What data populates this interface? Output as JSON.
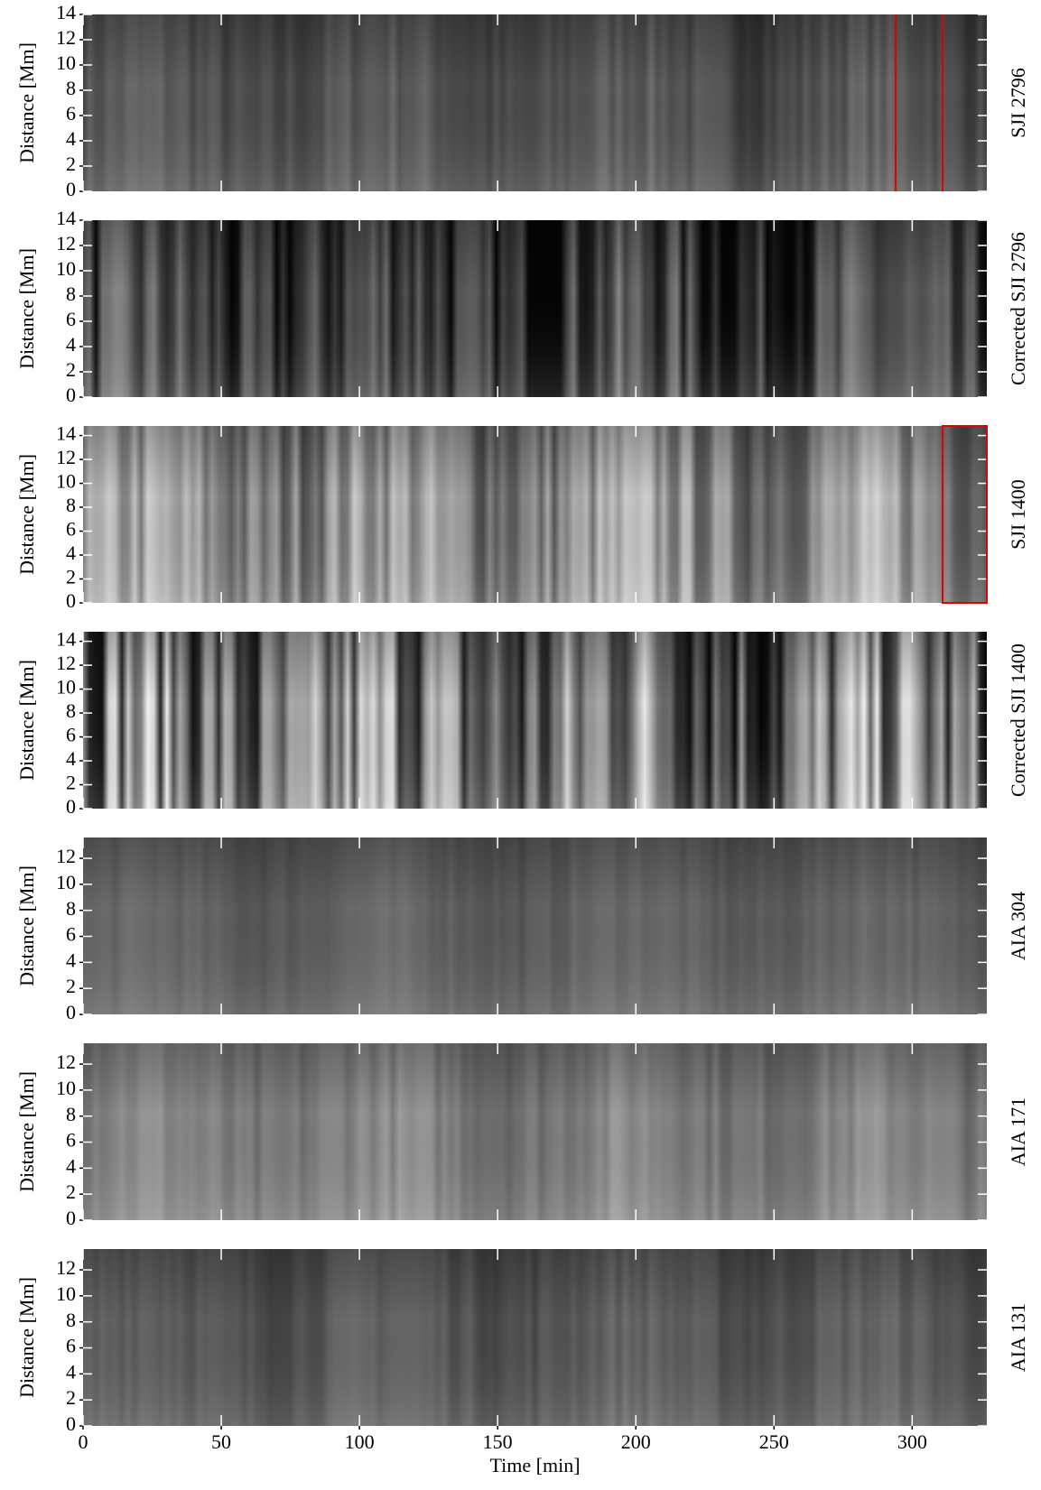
{
  "chart_data": [
    {
      "type": "heatmap",
      "ylabel": "Distance [Mm]",
      "label": "SJI 2796",
      "xlim": [
        0,
        327
      ],
      "ylim": [
        0,
        14
      ],
      "yticks": [
        0,
        2,
        4,
        6,
        8,
        10,
        12,
        14
      ],
      "xticks": [
        0,
        50,
        100,
        150,
        200,
        250,
        300
      ],
      "highlight_lines": [
        294,
        311
      ],
      "highlight_color": "#e00000"
    },
    {
      "type": "heatmap",
      "ylabel": "Distance [Mm]",
      "label": "Corrected SJI 2796",
      "xlim": [
        0,
        327
      ],
      "ylim": [
        0,
        14
      ],
      "yticks": [
        0,
        2,
        4,
        6,
        8,
        10,
        12,
        14
      ],
      "xticks": [
        0,
        50,
        100,
        150,
        200,
        250,
        300
      ]
    },
    {
      "type": "heatmap",
      "ylabel": "Distance [Mm]",
      "label": "SJI 1400",
      "xlim": [
        0,
        327
      ],
      "ylim": [
        0,
        14.8
      ],
      "yticks": [
        0,
        2,
        4,
        6,
        8,
        10,
        12,
        14
      ],
      "xticks": [
        0,
        50,
        100,
        150,
        200,
        250,
        300
      ],
      "highlight_box": [
        311,
        327
      ],
      "highlight_color": "#e00000"
    },
    {
      "type": "heatmap",
      "ylabel": "Distance [Mm]",
      "label": "Corrected SJI 1400",
      "xlim": [
        0,
        327
      ],
      "ylim": [
        0,
        14.8
      ],
      "yticks": [
        0,
        2,
        4,
        6,
        8,
        10,
        12,
        14
      ],
      "xticks": [
        0,
        50,
        100,
        150,
        200,
        250,
        300
      ]
    },
    {
      "type": "heatmap",
      "ylabel": "Distance [Mm]",
      "label": "AIA 304",
      "xlim": [
        0,
        327
      ],
      "ylim": [
        0,
        13.6
      ],
      "yticks": [
        0,
        2,
        4,
        6,
        8,
        10,
        12
      ],
      "xticks": [
        0,
        50,
        100,
        150,
        200,
        250,
        300
      ]
    },
    {
      "type": "heatmap",
      "ylabel": "Distance [Mm]",
      "label": "AIA 171",
      "xlim": [
        0,
        327
      ],
      "ylim": [
        0,
        13.6
      ],
      "yticks": [
        0,
        2,
        4,
        6,
        8,
        10,
        12
      ],
      "xticks": [
        0,
        50,
        100,
        150,
        200,
        250,
        300
      ]
    },
    {
      "type": "heatmap",
      "ylabel": "Distance [Mm]",
      "label": "AIA 131",
      "xlabel": "Time [min]",
      "xlim": [
        0,
        327
      ],
      "ylim": [
        0,
        13.6
      ],
      "yticks": [
        0,
        2,
        4,
        6,
        8,
        10,
        12
      ],
      "xticks": [
        0,
        50,
        100,
        150,
        200,
        250,
        300
      ]
    }
  ]
}
